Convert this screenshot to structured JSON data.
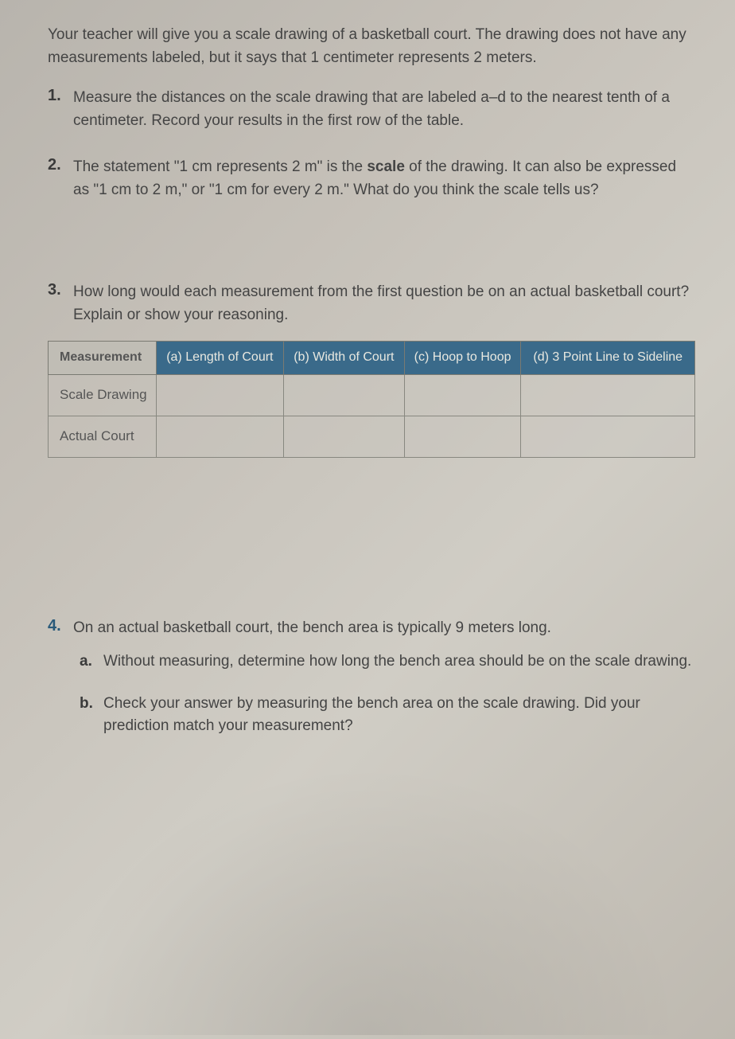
{
  "intro": "Your teacher will give you a scale drawing of a basketball court. The drawing does not have any measurements labeled, but it says that 1 centimeter represents 2 meters.",
  "q1": {
    "num": "1.",
    "text": "Measure the distances on the scale drawing that are labeled a–d to the nearest tenth of a centimeter. Record your results in the first row of the table."
  },
  "q2": {
    "num": "2.",
    "text_before": "The statement \"1 cm represents 2 m\" is the ",
    "bold": "scale",
    "text_after": " of the drawing. It can also be expressed as \"1 cm to 2 m,\" or \"1 cm for every 2 m.\" What do you think the scale tells us?"
  },
  "q3": {
    "num": "3.",
    "text": "How long would each measurement from the first question be on an actual basketball court? Explain or show your reasoning."
  },
  "table": {
    "headers": [
      "Measurement",
      "(a) Length of Court",
      "(b) Width of Court",
      "(c) Hoop to Hoop",
      "(d) 3 Point Line to Sideline"
    ],
    "rows": [
      [
        "Scale Drawing",
        "",
        "",
        "",
        ""
      ],
      [
        "Actual Court",
        "",
        "",
        "",
        ""
      ]
    ],
    "header_bg": "#3a6a8a",
    "header_first_bg": "#c0bdb5",
    "border_color": "#888880"
  },
  "q4": {
    "num": "4.",
    "text": "On an actual basketball court, the bench area is typically 9 meters long.",
    "a": {
      "num": "a.",
      "text": "Without measuring, determine how long the bench area should be on the scale drawing."
    },
    "b": {
      "num": "b.",
      "text": "Check your answer by measuring the bench area on the scale drawing. Did your prediction match your measurement?"
    }
  }
}
